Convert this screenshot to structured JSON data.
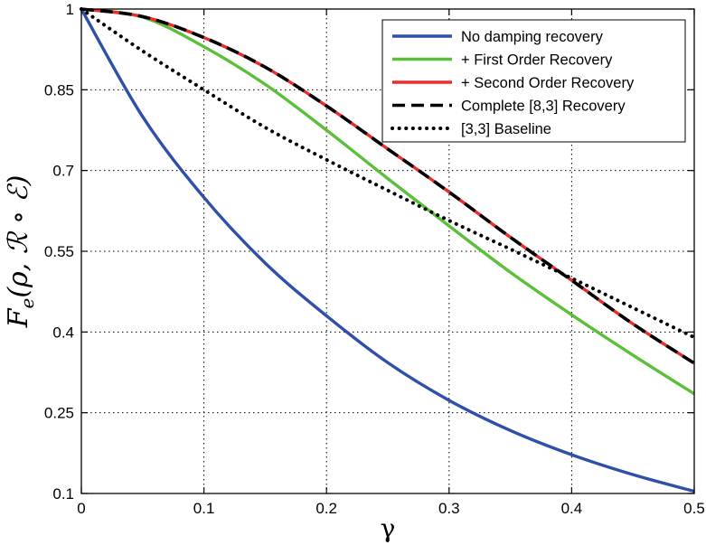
{
  "chart_data": {
    "type": "line",
    "title": "",
    "xlabel": "γ",
    "ylabel": "F_e(ρ, R ∘ E)",
    "ylabel_parts": {
      "main": "F",
      "sub": "e",
      "args": "(ρ, ℛ ∘ ℰ)"
    },
    "xlim": [
      0,
      0.5
    ],
    "ylim": [
      0.1,
      1
    ],
    "xticks": [
      0,
      0.1,
      0.2,
      0.3,
      0.4,
      0.5
    ],
    "xtick_labels": [
      "0",
      "0.1",
      "0.2",
      "0.3",
      "0.4",
      "0.5"
    ],
    "yticks": [
      0.1,
      0.25,
      0.4,
      0.55,
      0.7,
      0.85,
      1
    ],
    "ytick_labels": [
      "0.1",
      "0.25",
      "0.4",
      "0.55",
      "0.7",
      "0.85",
      "1"
    ],
    "grid": true,
    "legend_position": "top-right",
    "x": [
      0,
      0.05,
      0.1,
      0.15,
      0.2,
      0.25,
      0.3,
      0.35,
      0.4,
      0.45,
      0.5
    ],
    "series": [
      {
        "name": "No damping recovery",
        "color": "#2f4fa8",
        "style": "solid",
        "values": [
          1.0,
          0.8,
          0.65,
          0.528,
          0.43,
          0.343,
          0.273,
          0.217,
          0.172,
          0.135,
          0.104
        ]
      },
      {
        "name": "+ First Order Recovery",
        "color": "#5cbf3a",
        "style": "solid",
        "values": [
          1.0,
          0.985,
          0.93,
          0.86,
          0.775,
          0.685,
          0.597,
          0.511,
          0.432,
          0.357,
          0.285
        ]
      },
      {
        "name": "+ Second Order Recovery",
        "color": "#ee2a2a",
        "style": "solid",
        "values": [
          1.0,
          0.986,
          0.947,
          0.892,
          0.82,
          0.74,
          0.66,
          0.576,
          0.496,
          0.415,
          0.342
        ]
      },
      {
        "name": "Complete [8,3] Recovery",
        "color": "#000000",
        "style": "dashed",
        "values": [
          1.0,
          0.986,
          0.947,
          0.892,
          0.82,
          0.74,
          0.66,
          0.576,
          0.496,
          0.415,
          0.342
        ]
      },
      {
        "name": "[3,3] Baseline",
        "color": "#000000",
        "style": "dotted",
        "values": [
          1.0,
          0.922,
          0.85,
          0.78,
          0.72,
          0.663,
          0.607,
          0.554,
          0.5,
          0.445,
          0.39
        ]
      }
    ]
  }
}
